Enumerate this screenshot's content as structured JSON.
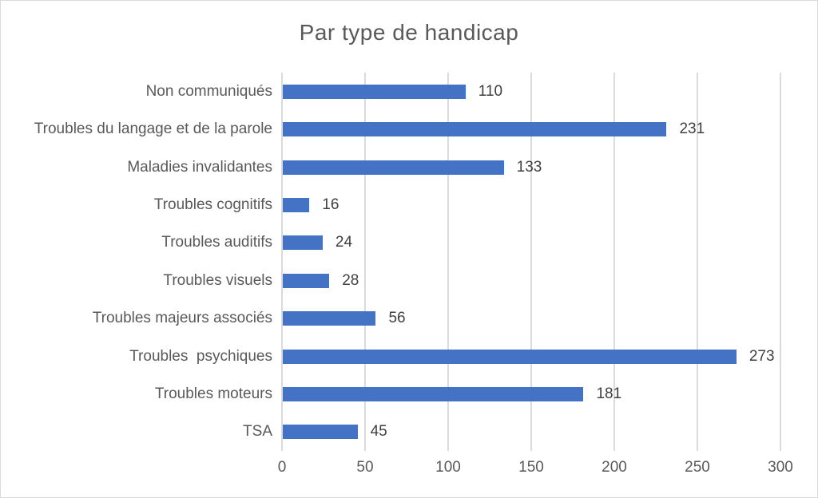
{
  "chart_data": {
    "type": "bar",
    "orientation": "horizontal",
    "title": "Par type de handicap",
    "categories": [
      "Non communiqués",
      "Troubles du langage et de la parole",
      "Maladies invalidantes",
      "Troubles cognitifs",
      "Troubles auditifs",
      "Troubles visuels",
      "Troubles majeurs associés",
      "Troubles  psychiques",
      "Troubles moteurs",
      "TSA"
    ],
    "values": [
      110,
      231,
      133,
      16,
      24,
      28,
      56,
      273,
      181,
      45
    ],
    "data_labels": [
      110,
      231,
      133,
      16,
      24,
      28,
      56,
      273,
      181,
      45
    ],
    "xlim": [
      0,
      300
    ],
    "x_ticks": [
      0,
      50,
      100,
      150,
      200,
      250,
      300
    ],
    "grid": true,
    "legend": "none",
    "colors": {
      "bar": "#4472c4",
      "gridline": "#dadada",
      "title_text": "#595959",
      "axis_text": "#595959",
      "data_label_text": "#404040",
      "frame_border": "#d9d9d9"
    }
  }
}
